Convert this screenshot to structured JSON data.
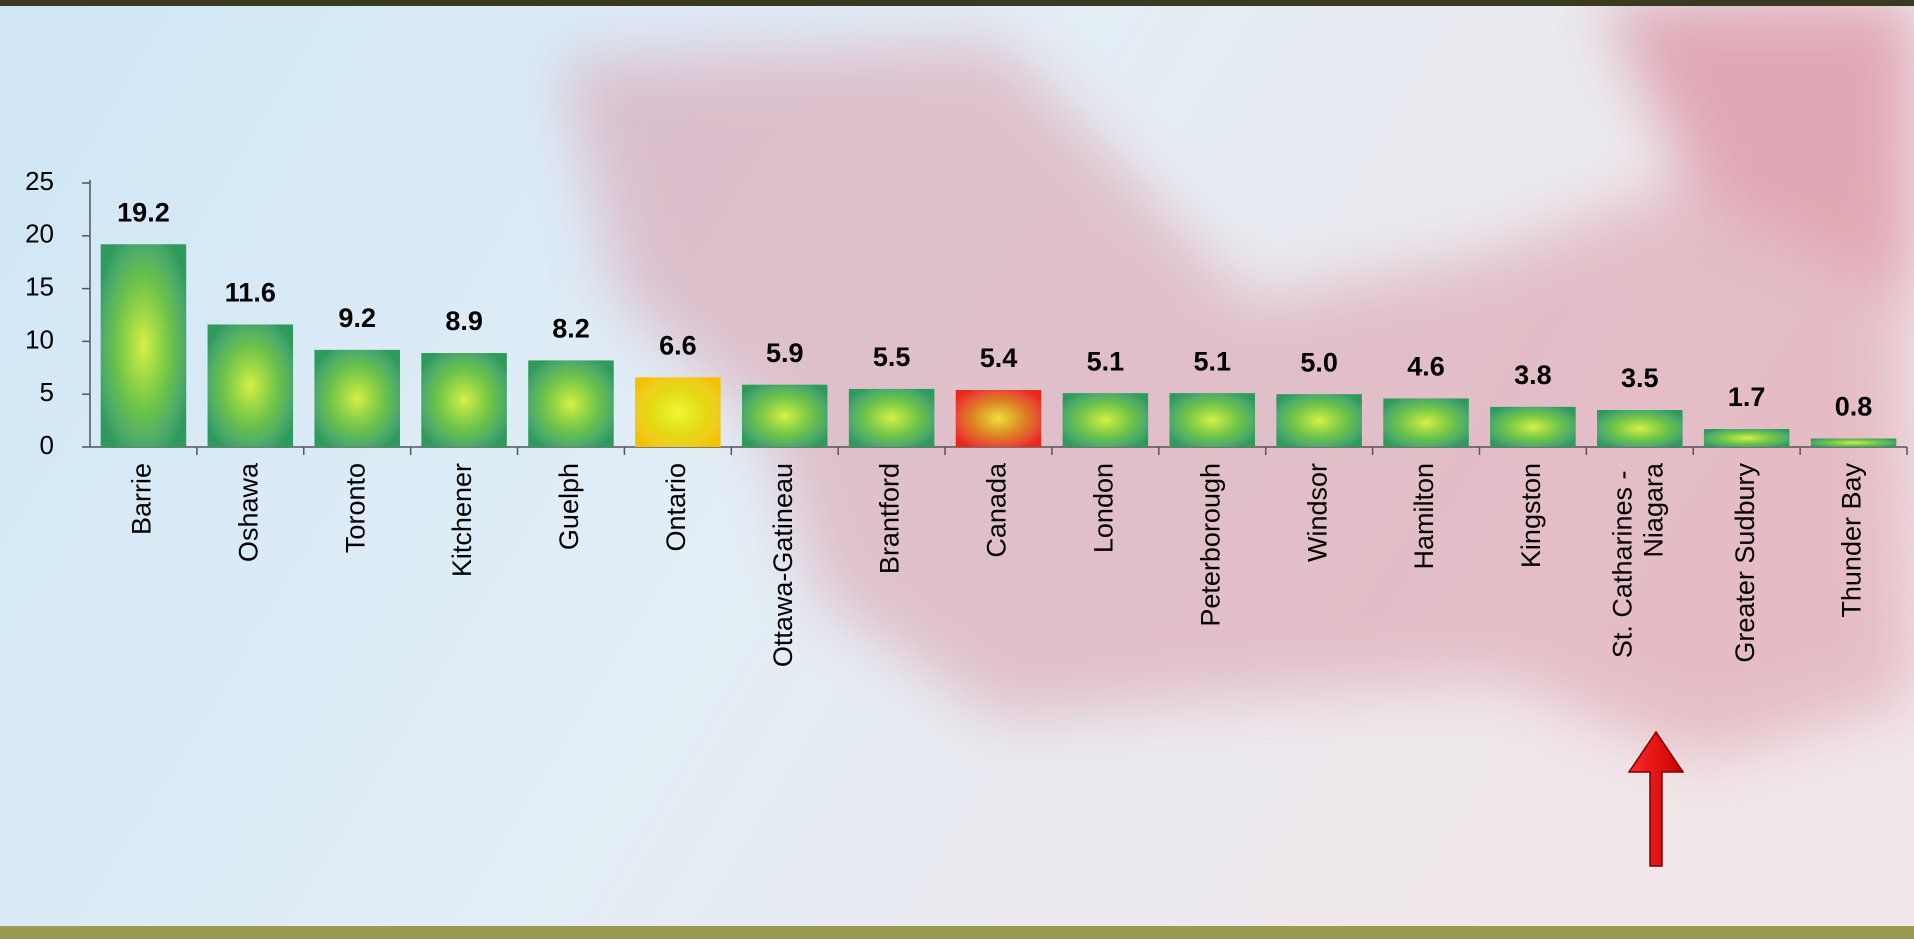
{
  "chart_data": {
    "type": "bar",
    "categories": [
      "Barrie",
      "Oshawa",
      "Toronto",
      "Kitchener",
      "Guelph",
      "Ontario",
      "Ottawa-Gatineau",
      "Brantford",
      "Canada",
      "London",
      "Peterborough",
      "Windsor",
      "Hamilton",
      "Kingston",
      "St. Catharines - Niagara",
      "Greater Sudbury",
      "Thunder Bay"
    ],
    "values": [
      19.2,
      11.6,
      9.2,
      8.9,
      8.2,
      6.6,
      5.9,
      5.5,
      5.4,
      5.1,
      5.1,
      5.0,
      4.6,
      3.8,
      3.5,
      1.7,
      0.8
    ],
    "value_labels": [
      "19.2",
      "11.6",
      "9.2",
      "8.9",
      "8.2",
      "6.6",
      "5.9",
      "5.5",
      "5.4",
      "5.1",
      "5.1",
      "5.0",
      "4.6",
      "3.8",
      "3.5",
      "1.7",
      "0.8"
    ],
    "colors": [
      "#2e9a5c",
      "#2e9a5c",
      "#2e9a5c",
      "#2e9a5c",
      "#2e9a5c",
      "#f2c200",
      "#2e9a5c",
      "#2e9a5c",
      "#e8281a",
      "#2e9a5c",
      "#2e9a5c",
      "#2e9a5c",
      "#2e9a5c",
      "#2e9a5c",
      "#2e9a5c",
      "#2e9a5c",
      "#2e9a5c"
    ],
    "ylim": [
      0,
      25
    ],
    "yticks": [
      0,
      5,
      10,
      15,
      20,
      25
    ],
    "grid": false
  }
}
